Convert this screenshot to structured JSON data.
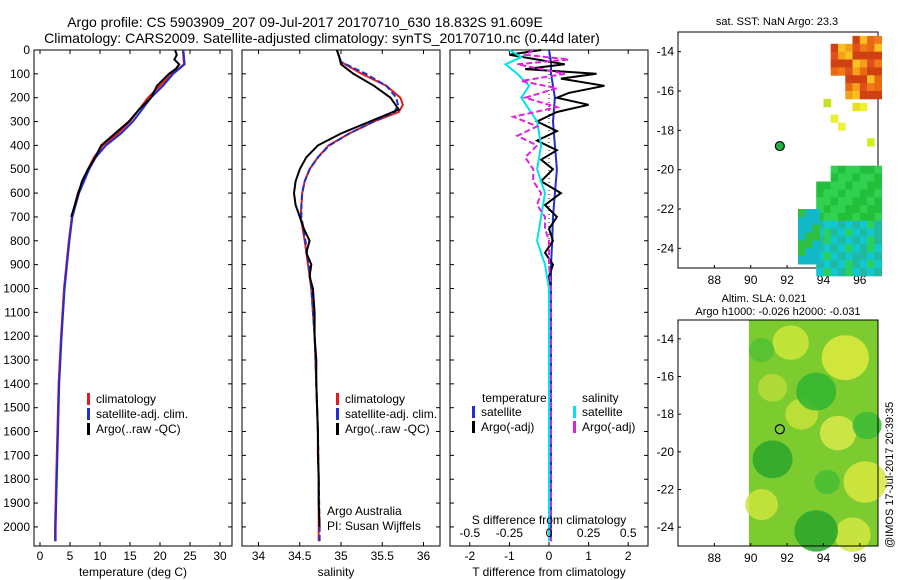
{
  "header": {
    "line1": "Argo profile: CS 5903909_207 09-Jul-2017 20170710_630 18.832S 91.609E",
    "line2": "Climatology: CARS2009. Satellite-adjusted climatology: synTS_20170710.nc (0.44d later)"
  },
  "colors": {
    "climatology": "#e41a1c",
    "satellite": "#1f2fd0",
    "argo": "#000000",
    "sat_salinity": "#00e5e5",
    "argo_adj_salinity": "#e020e0"
  },
  "chart_data": [
    {
      "type": "line",
      "name": "temperature",
      "xlabel": "temperature (deg C)",
      "xlim": [
        -1,
        32
      ],
      "ylim": [
        0,
        2080
      ],
      "y_reversed": true,
      "xticks": [
        0,
        5,
        10,
        15,
        20,
        25,
        30
      ],
      "yticks": [
        0,
        100,
        200,
        300,
        400,
        500,
        600,
        700,
        800,
        900,
        1000,
        1100,
        1200,
        1300,
        1400,
        1500,
        1600,
        1700,
        1800,
        1900,
        2000
      ],
      "legend": [
        "climatology",
        "satellite-adj. clim.",
        "Argo(..raw -QC)"
      ],
      "series": [
        {
          "name": "climatology",
          "depth": [
            0,
            30,
            60,
            100,
            150,
            200,
            250,
            300,
            350,
            400,
            450,
            500,
            600,
            700,
            800,
            900,
            1000,
            1200,
            1400,
            1600,
            1800,
            2000,
            2060
          ],
          "values": [
            23.8,
            23.9,
            24.0,
            22.0,
            20.0,
            18.0,
            16.5,
            15.0,
            13.0,
            10.5,
            9.0,
            8.0,
            6.3,
            5.3,
            4.8,
            4.4,
            4.0,
            3.5,
            3.1,
            2.9,
            2.7,
            2.5,
            2.5
          ]
        },
        {
          "name": "satellite-adj. clim.",
          "depth": [
            0,
            30,
            60,
            100,
            150,
            200,
            250,
            300,
            350,
            400,
            450,
            500,
            600,
            700,
            800,
            900,
            1000,
            1200,
            1400,
            1600,
            1800,
            2000,
            2060
          ],
          "values": [
            23.9,
            24.0,
            24.1,
            22.2,
            20.5,
            18.5,
            17.0,
            15.5,
            13.5,
            11.0,
            9.3,
            8.2,
            6.5,
            5.4,
            4.9,
            4.5,
            4.1,
            3.6,
            3.2,
            3.0,
            2.8,
            2.6,
            2.6
          ]
        },
        {
          "name": "Argo(..raw -QC)",
          "depth": [
            0,
            20,
            40,
            60,
            80,
            100,
            150,
            200,
            250,
            300,
            350,
            400,
            450,
            500,
            550,
            600,
            650,
            700
          ],
          "values": [
            22.5,
            22.8,
            22.4,
            23.2,
            22.6,
            21.5,
            19.5,
            18.5,
            16.5,
            14.8,
            12.5,
            10.2,
            9.2,
            8.0,
            7.0,
            6.4,
            5.8,
            5.2
          ]
        }
      ]
    },
    {
      "type": "line",
      "name": "salinity",
      "xlabel": "salinity",
      "xlim": [
        33.8,
        36.2
      ],
      "ylim": [
        0,
        2080
      ],
      "y_reversed": true,
      "xticks": [
        34,
        34.5,
        35,
        35.5,
        36
      ],
      "legend": [
        "climatology",
        "satellite-adj. clim.",
        "Argo(..raw -QC)"
      ],
      "annotation": [
        "Argo Australia",
        "PI: Susan Wijffels"
      ],
      "series": [
        {
          "name": "climatology",
          "depth": [
            0,
            50,
            100,
            150,
            200,
            230,
            260,
            300,
            350,
            400,
            450,
            500,
            550,
            600,
            650,
            700,
            800,
            900,
            1000,
            1200,
            1400,
            1600,
            1800,
            2000,
            2060
          ],
          "values": [
            34.95,
            35.0,
            35.25,
            35.55,
            35.72,
            35.75,
            35.7,
            35.4,
            35.1,
            34.85,
            34.72,
            34.62,
            34.56,
            34.53,
            34.52,
            34.51,
            34.56,
            34.6,
            34.64,
            34.68,
            34.7,
            34.72,
            34.73,
            34.73,
            34.73
          ]
        },
        {
          "name": "satellite-adj. clim.",
          "depth": [
            0,
            50,
            100,
            150,
            200,
            230,
            260,
            300,
            350,
            400,
            450,
            500,
            550,
            600,
            650,
            700,
            800,
            900,
            1000,
            1200,
            1400,
            1600,
            1800,
            2000,
            2060
          ],
          "values": [
            34.95,
            35.0,
            35.3,
            35.55,
            35.67,
            35.69,
            35.65,
            35.4,
            35.1,
            34.86,
            34.72,
            34.62,
            34.56,
            34.53,
            34.52,
            34.52,
            34.57,
            34.61,
            34.64,
            34.68,
            34.7,
            34.72,
            34.73,
            34.74,
            34.74
          ]
        },
        {
          "name": "Argo(..raw -QC)",
          "depth": [
            0,
            30,
            60,
            100,
            150,
            200,
            250,
            300,
            350,
            400,
            450,
            500,
            550,
            600,
            650,
            700,
            750,
            800,
            850,
            900,
            950,
            1000,
            1100,
            1200,
            1300,
            1400,
            1500,
            1600,
            1700,
            1800,
            1900,
            2000
          ],
          "values": [
            34.95,
            34.98,
            35.0,
            35.15,
            35.4,
            35.6,
            35.7,
            35.35,
            35.0,
            34.72,
            34.58,
            34.5,
            34.45,
            34.43,
            34.45,
            34.5,
            34.55,
            34.62,
            34.58,
            34.64,
            34.62,
            34.66,
            34.68,
            34.68,
            34.7,
            34.7,
            34.71,
            34.72,
            34.72,
            34.73,
            34.73,
            34.74
          ]
        }
      ]
    },
    {
      "type": "line",
      "name": "difference",
      "xlabel": "T difference from climatology",
      "top_axis_label": "S difference from climatology",
      "xlim": [
        -2.5,
        2.5
      ],
      "ylim": [
        0,
        2080
      ],
      "y_reversed": true,
      "xticks": [
        -2,
        -1,
        0,
        1,
        2
      ],
      "s_ticks": [
        -0.5,
        -0.25,
        0,
        0.25,
        0.5
      ],
      "legend_temperature_title": "temperature",
      "legend_salinity_title": "salinity",
      "legend": [
        "satellite",
        "Argo(-adj)",
        "satellite",
        "Argo(-adj)"
      ],
      "series": [
        {
          "name": "T satellite",
          "depth": [
            0,
            50,
            100,
            150,
            200,
            300,
            400,
            500,
            600,
            700,
            800,
            900,
            1000,
            1200,
            1400,
            1600,
            1800,
            2000,
            2060
          ],
          "values": [
            0.0,
            0.05,
            0.05,
            0.1,
            0.15,
            0.1,
            0.15,
            0.2,
            0.15,
            0.1,
            0.08,
            0.05,
            0.05,
            0.05,
            0.05,
            0.05,
            0.05,
            0.05,
            0.05
          ]
        },
        {
          "name": "T Argo(-adj)",
          "depth": [
            0,
            20,
            40,
            60,
            80,
            100,
            120,
            150,
            180,
            200,
            230,
            260,
            300,
            340,
            380,
            420,
            460,
            500,
            550,
            600,
            650,
            700,
            750,
            800,
            850,
            900,
            950,
            1000
          ],
          "values": [
            -0.2,
            -1.0,
            -0.3,
            0.4,
            -0.6,
            1.2,
            0.3,
            1.4,
            0.5,
            0.2,
            1.0,
            0.2,
            -0.3,
            0.2,
            -0.3,
            0.2,
            -0.2,
            0.1,
            -0.2,
            0.3,
            -0.1,
            0.2,
            0.0,
            0.1,
            -0.1,
            0.1,
            0.0,
            0.05
          ]
        },
        {
          "name": "S satellite",
          "depth": [
            0,
            30,
            60,
            100,
            150,
            200,
            300,
            400,
            500,
            600,
            700,
            800,
            900,
            1000,
            1200,
            1400,
            1600,
            1800,
            2000,
            2060
          ],
          "values": [
            -1.0,
            -0.7,
            -1.1,
            -0.8,
            -0.5,
            -0.7,
            -0.3,
            -0.2,
            -0.3,
            -0.1,
            -0.2,
            -0.3,
            -0.1,
            0.0,
            0.0,
            0.0,
            0.0,
            0.0,
            0.0,
            0.0
          ]
        },
        {
          "name": "S Argo(-adj)",
          "depth": [
            0,
            20,
            40,
            60,
            80,
            100,
            130,
            160,
            200,
            240,
            280,
            320,
            360,
            400,
            450,
            500,
            550,
            600,
            650,
            700,
            750,
            800,
            900,
            1000,
            1200,
            1400,
            1600,
            1800,
            2000,
            2060
          ],
          "values": [
            -0.4,
            -0.6,
            0.5,
            -0.8,
            -0.2,
            0.4,
            -0.7,
            0.2,
            -0.6,
            0.2,
            -0.9,
            -0.3,
            -0.8,
            -0.3,
            -0.6,
            -0.4,
            -0.4,
            -0.2,
            -0.3,
            -0.1,
            -0.1,
            0.0,
            0.0,
            0.05,
            0.05,
            0.05,
            0.05,
            0.05,
            0.05,
            0.05
          ]
        }
      ]
    },
    {
      "type": "heatmap",
      "name": "sst_map",
      "title": "sat. SST: NaN Argo: 23.3",
      "xlim": [
        86,
        97
      ],
      "ylim": [
        -25,
        -13
      ],
      "xticks": [
        88,
        90,
        92,
        94,
        96
      ],
      "yticks": [
        -14,
        -16,
        -18,
        -20,
        -22,
        -24
      ],
      "argo_location": [
        91.6,
        -18.8
      ]
    },
    {
      "type": "heatmap",
      "name": "sla_map",
      "title_line1": "Altim. SLA: 0.021",
      "title_line2": "Argo h1000: -0.026 h2000: -0.031",
      "xlim": [
        86,
        97
      ],
      "ylim": [
        -25,
        -13
      ],
      "xticks": [
        88,
        90,
        92,
        94,
        96
      ],
      "yticks": [
        -14,
        -16,
        -18,
        -20,
        -22,
        -24
      ],
      "argo_location": [
        91.6,
        -18.8
      ]
    }
  ],
  "footer": {
    "timestamp": "@IMOS 17-Jul-2017 20:39:35"
  }
}
